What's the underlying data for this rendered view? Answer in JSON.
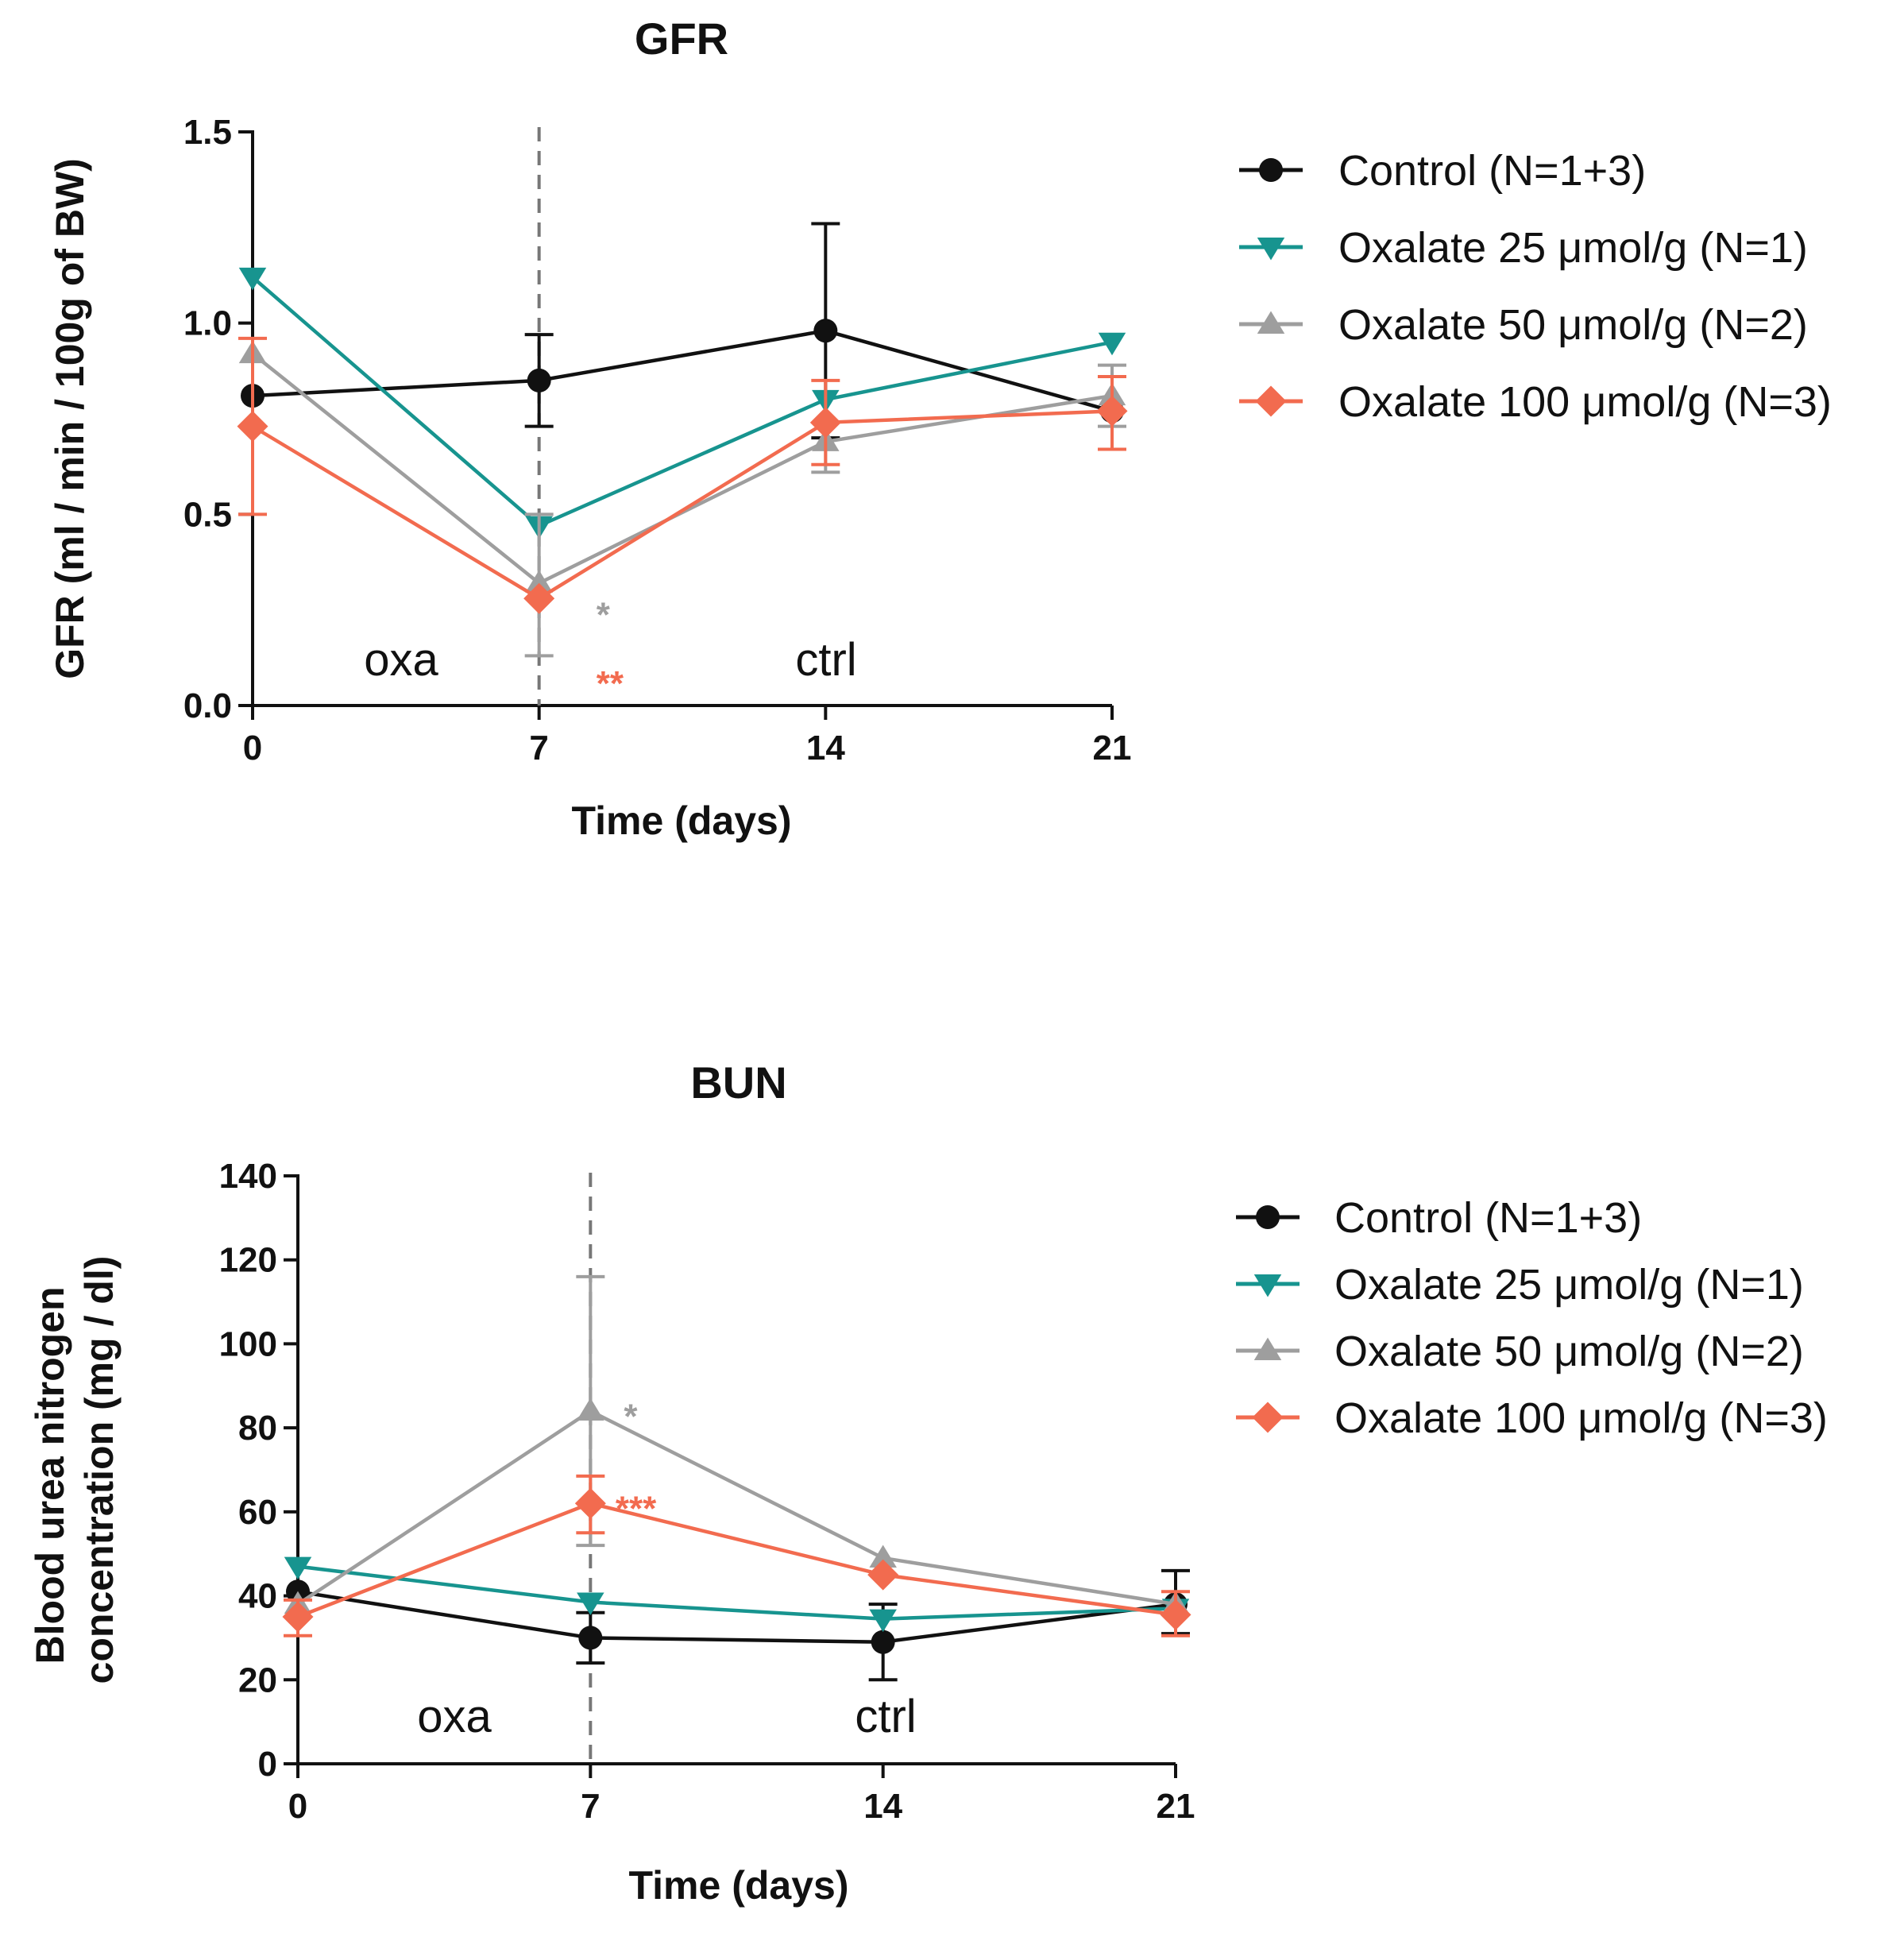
{
  "chart_data": [
    {
      "type": "line",
      "title": "GFR",
      "xlabel": "Time (days)",
      "ylabel": "GFR (ml / min / 100g of BW)",
      "x": [
        0,
        7,
        14,
        21
      ],
      "x_tick_labels": [
        "0",
        "7",
        "14",
        "21"
      ],
      "y_tick_labels": [
        "0.0",
        "0.5",
        "1.0",
        "1.5"
      ],
      "ylim": [
        0,
        1.5
      ],
      "xlim": [
        0,
        21
      ],
      "grid": false,
      "legend_position": "right",
      "vertical_marker": {
        "x": 7,
        "style": "dashed"
      },
      "annotations": {
        "left_period": "oxa",
        "right_period": "ctrl"
      },
      "series": [
        {
          "name": "Control (N=1+3)",
          "color": "#111111",
          "marker": "circle",
          "values": [
            0.81,
            0.85,
            0.98,
            0.77
          ],
          "error_upper": [
            null,
            0.97,
            1.26,
            null
          ],
          "error_lower": [
            null,
            0.73,
            0.7,
            null
          ]
        },
        {
          "name": "Oxalate 25 μmol/g (N=1)",
          "color": "#17948f",
          "marker": "triangle-down",
          "values": [
            1.12,
            0.47,
            0.8,
            0.95
          ],
          "error_upper": [
            null,
            null,
            null,
            null
          ],
          "error_lower": [
            null,
            null,
            null,
            null
          ]
        },
        {
          "name": "Oxalate 50 μmol/g (N=2)",
          "color": "#9e9e9e",
          "marker": "triangle-up",
          "values": [
            0.92,
            0.32,
            0.69,
            0.81
          ],
          "error_upper": [
            null,
            0.5,
            null,
            0.89
          ],
          "error_lower": [
            null,
            0.13,
            0.61,
            0.73
          ]
        },
        {
          "name": "Oxalate 100 μmol/g (N=3)",
          "color": "#f26b4f",
          "marker": "diamond",
          "values": [
            0.73,
            0.28,
            0.74,
            0.77
          ],
          "error_upper": [
            0.96,
            null,
            0.85,
            0.86
          ],
          "error_lower": [
            0.5,
            null,
            0.63,
            0.67
          ]
        }
      ],
      "significance": [
        {
          "text": "*",
          "color": "#9e9e9e",
          "x": 8.4,
          "y": 0.24
        },
        {
          "text": "**",
          "color": "#f26b4f",
          "x": 8.4,
          "y": 0.06
        }
      ]
    },
    {
      "type": "line",
      "title": "BUN",
      "xlabel": "Time (days)",
      "ylabel_lines": [
        "Blood urea nitrogen",
        "concentration (mg / dl)"
      ],
      "x": [
        0,
        7,
        14,
        21
      ],
      "x_tick_labels": [
        "0",
        "7",
        "14",
        "21"
      ],
      "y_tick_labels": [
        "0",
        "20",
        "40",
        "60",
        "80",
        "100",
        "120",
        "140"
      ],
      "ylim": [
        0,
        140
      ],
      "xlim": [
        0,
        21
      ],
      "grid": false,
      "legend_position": "right",
      "vertical_marker": {
        "x": 7,
        "style": "dashed"
      },
      "annotations": {
        "left_period": "oxa",
        "right_period": "ctrl"
      },
      "series": [
        {
          "name": "Control (N=1+3)",
          "color": "#111111",
          "marker": "circle",
          "values": [
            41,
            30,
            29,
            38
          ],
          "error_upper": [
            null,
            36,
            38,
            46
          ],
          "error_lower": [
            null,
            24,
            20,
            31
          ]
        },
        {
          "name": "Oxalate 25 μmol/g (N=1)",
          "color": "#17948f",
          "marker": "triangle-down",
          "values": [
            47,
            38.5,
            34.5,
            37
          ],
          "error_upper": [
            null,
            null,
            null,
            null
          ],
          "error_lower": [
            null,
            null,
            null,
            null
          ]
        },
        {
          "name": "Oxalate 50 μmol/g (N=2)",
          "color": "#9e9e9e",
          "marker": "triangle-up",
          "values": [
            38,
            84,
            49,
            38
          ],
          "error_upper": [
            null,
            116,
            null,
            null
          ],
          "error_lower": [
            null,
            52,
            null,
            null
          ]
        },
        {
          "name": "Oxalate 100 μmol/g (N=3)",
          "color": "#f26b4f",
          "marker": "diamond",
          "values": [
            35,
            62,
            45,
            35.5
          ],
          "error_upper": [
            39,
            68.5,
            null,
            41
          ],
          "error_lower": [
            30.5,
            55,
            null,
            30.5
          ]
        }
      ],
      "significance": [
        {
          "text": "*",
          "color": "#9e9e9e",
          "x": 7.8,
          "y": 83
        },
        {
          "text": "***",
          "color": "#f26b4f",
          "x": 7.6,
          "y": 61
        }
      ]
    }
  ]
}
